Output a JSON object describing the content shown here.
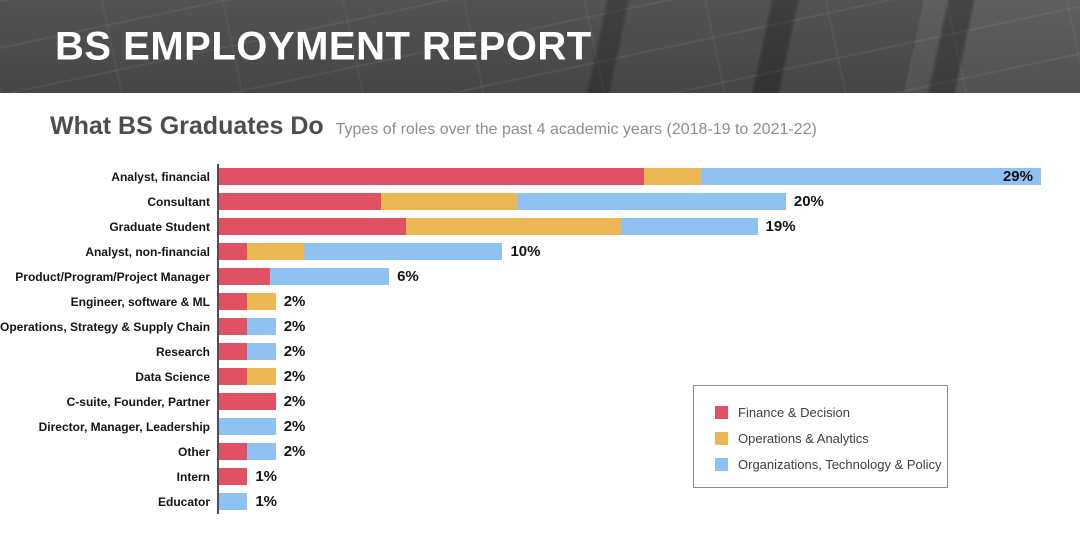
{
  "banner": {
    "title": "BS EMPLOYMENT REPORT"
  },
  "section": {
    "title": "What BS Graduates Do",
    "subtitle": "Types of roles over the past 4 academic years (2018-19 to 2021-22)"
  },
  "colors": {
    "finance": "#e05263",
    "operations": "#ecb854",
    "organizations": "#8fc1f2",
    "axis": "#4f4f4f"
  },
  "chart_data": {
    "type": "bar",
    "orientation": "horizontal",
    "stacked": true,
    "unit": "%",
    "xlim": [
      0,
      29
    ],
    "grid": false,
    "legend_position": "bottom-right-box",
    "categories": [
      "Analyst, financial",
      "Consultant",
      "Graduate Student",
      "Analyst, non-financial",
      "Product/Program/Project Manager",
      "Engineer, software & ML",
      "Operations, Strategy & Supply Chain",
      "Research",
      "Data Science",
      "C-suite, Founder, Partner",
      "Director, Manager, Leadership",
      "Other",
      "Intern",
      "Educator"
    ],
    "series": [
      {
        "name": "Finance & Decision",
        "color": "#e05263",
        "values": [
          15,
          5.7,
          6.6,
          1,
          1.8,
          1,
          1,
          1,
          1,
          2,
          0,
          1,
          1,
          0
        ]
      },
      {
        "name": "Operations & Analytics",
        "color": "#ecb854",
        "values": [
          2,
          4.8,
          7.6,
          2,
          0,
          1,
          0,
          0,
          1,
          0,
          0,
          0,
          0,
          0
        ]
      },
      {
        "name": "Organizations, Technology & Policy",
        "color": "#8fc1f2",
        "values": [
          12,
          9.5,
          4.8,
          7,
          4.2,
          0,
          1,
          1,
          0,
          0,
          2,
          1,
          0,
          1
        ]
      }
    ],
    "totals": [
      29,
      20,
      19,
      10,
      6,
      2,
      2,
      2,
      2,
      2,
      2,
      2,
      1,
      1
    ],
    "total_labels": [
      "29%",
      "20%",
      "19%",
      "10%",
      "6%",
      "2%",
      "2%",
      "2%",
      "2%",
      "2%",
      "2%",
      "2%",
      "1%",
      "1%"
    ]
  }
}
